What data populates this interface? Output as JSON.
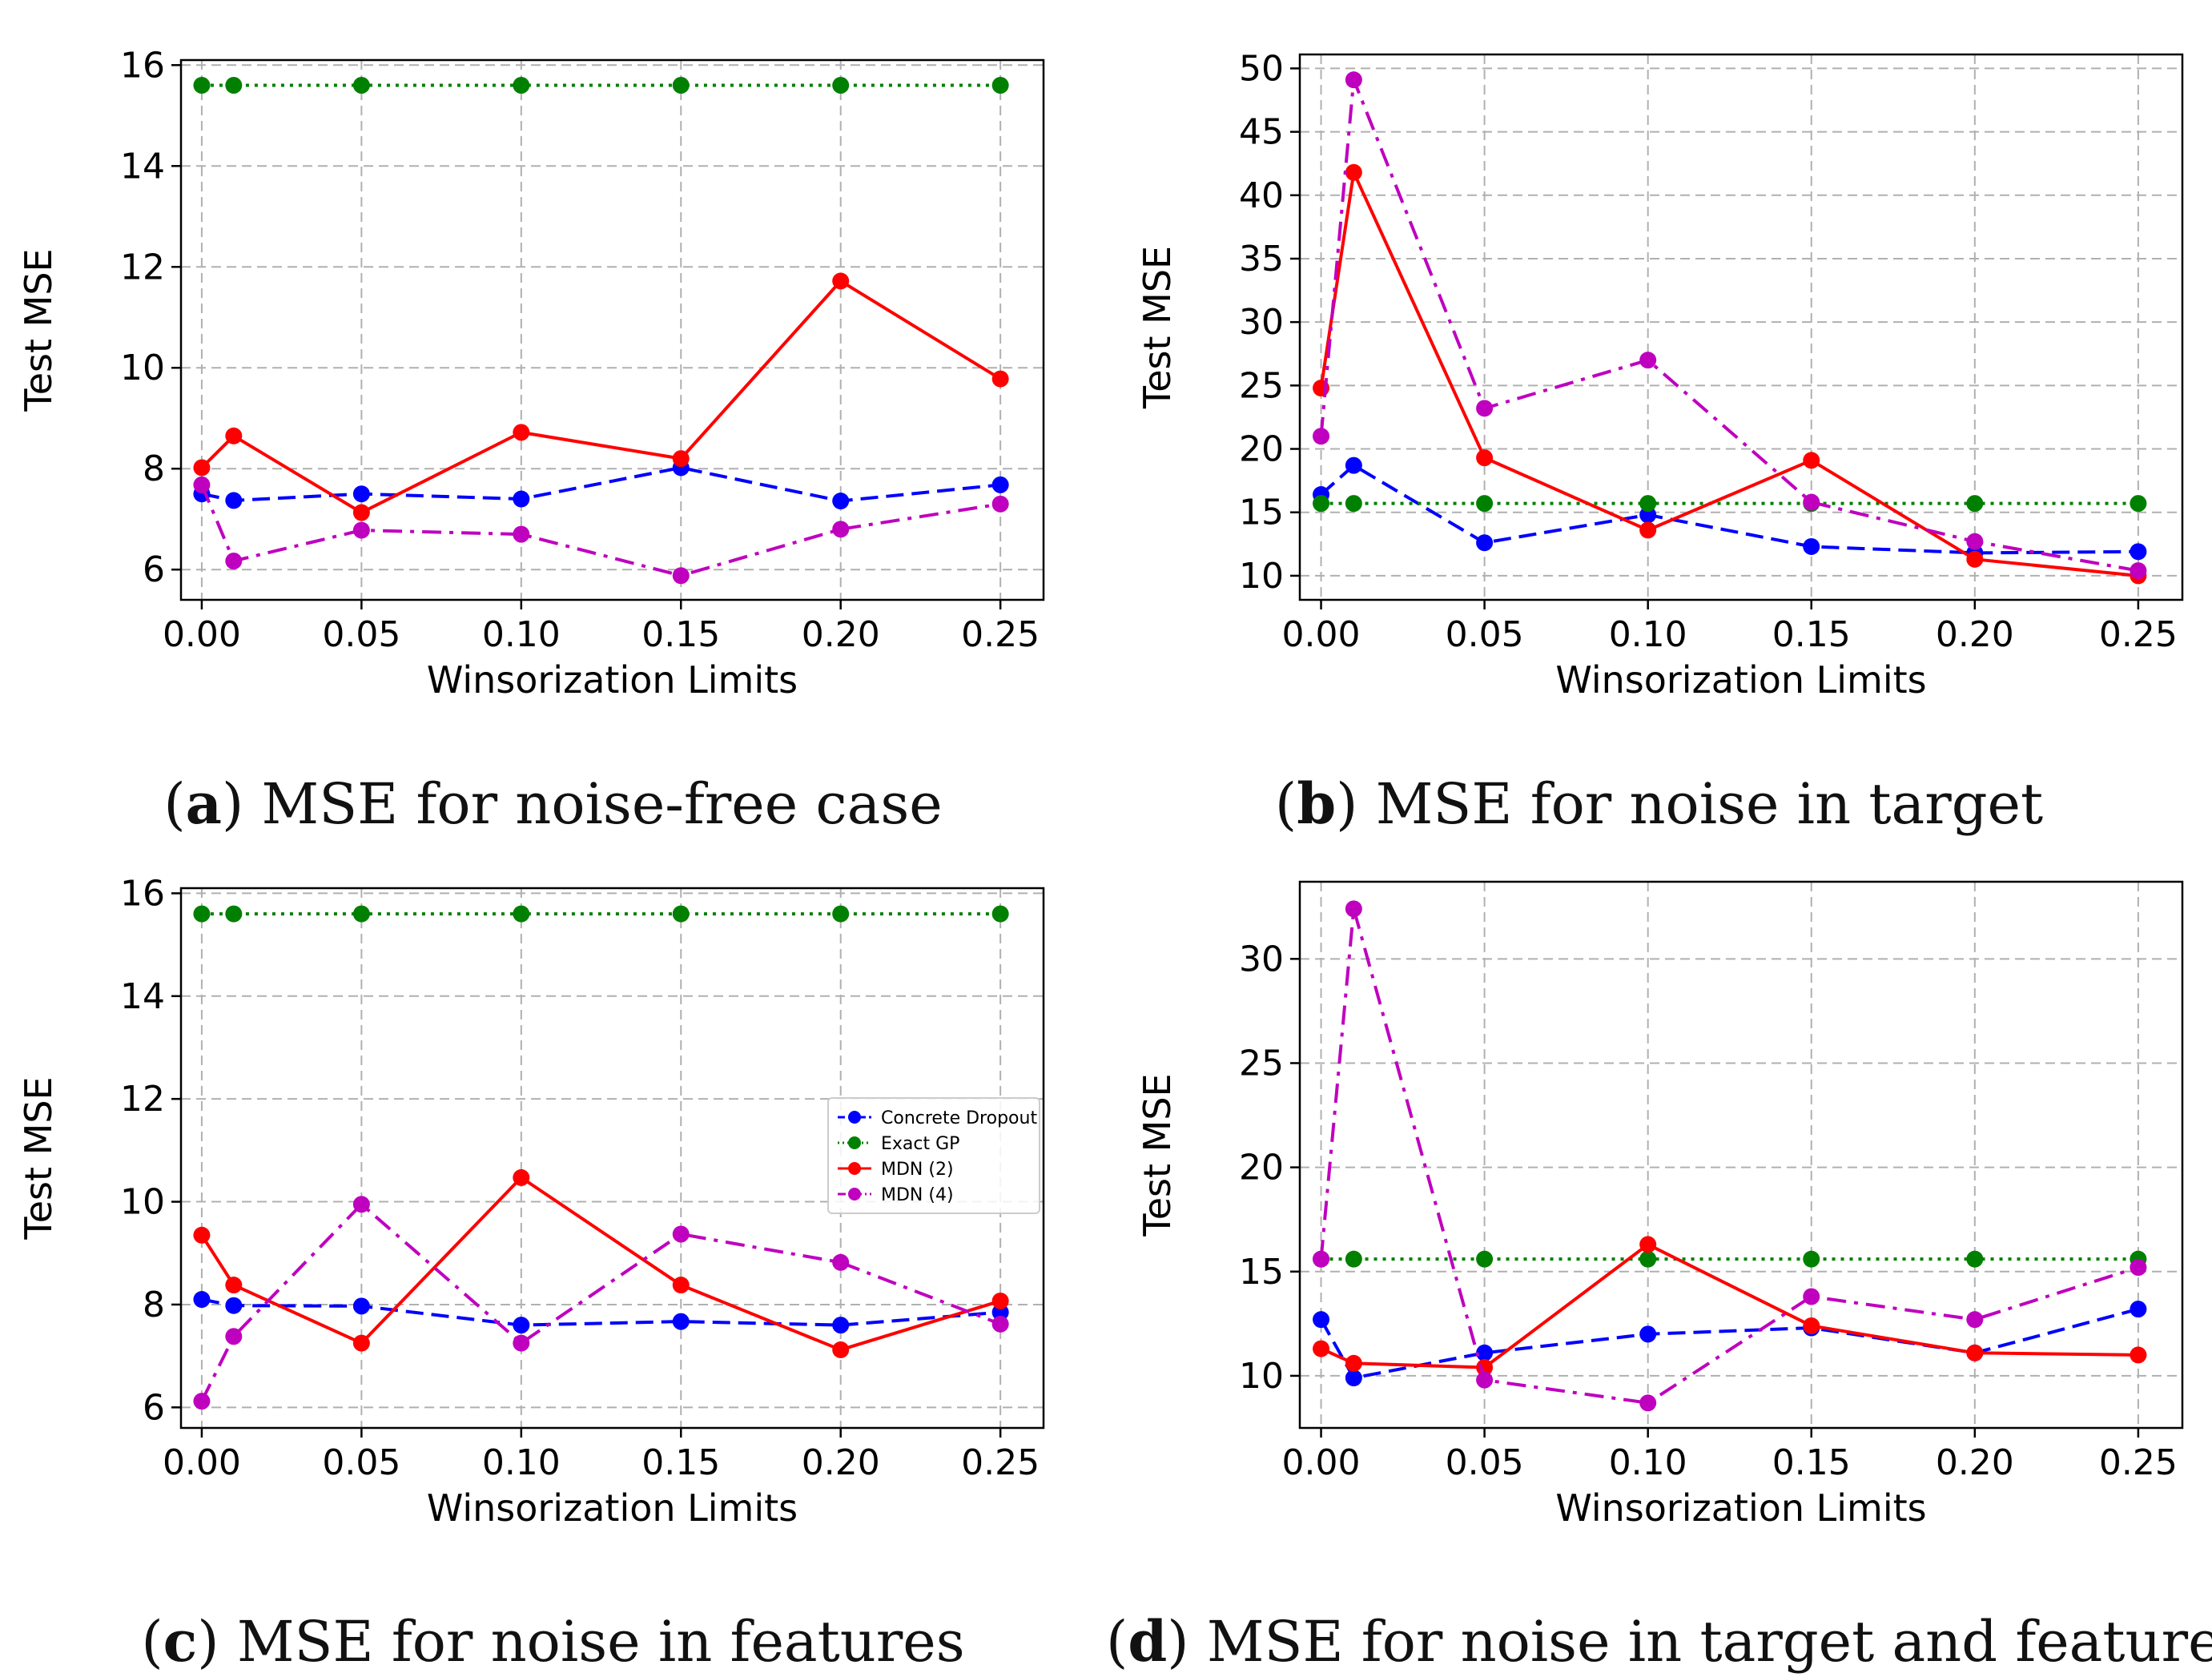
{
  "colors": {
    "concrete_dropout": "#0000ff",
    "exact_gp": "#008000",
    "mdn2": "#ff0000",
    "mdn4": "#bf00bf",
    "grid": "#b0b0b0"
  },
  "chart_data": [
    {
      "type": "line",
      "panel_label": "a",
      "caption": "MSE for noise-free case",
      "xlabel": "Winsorization Limits",
      "ylabel": "Test MSE",
      "x": [
        0.0,
        0.01,
        0.05,
        0.1,
        0.15,
        0.2,
        0.25
      ],
      "xticks": [
        "0.00",
        "0.05",
        "0.10",
        "0.15",
        "0.20",
        "0.25"
      ],
      "xtick_values": [
        0.0,
        0.05,
        0.1,
        0.15,
        0.2,
        0.25
      ],
      "xlim": [
        -0.0065,
        0.2635
      ],
      "ylim": [
        5.4,
        16.1
      ],
      "yticks": [
        "6",
        "8",
        "10",
        "12",
        "14",
        "16"
      ],
      "ytick_values": [
        6,
        8,
        10,
        12,
        14,
        16
      ],
      "grid": true,
      "legend": false,
      "series": [
        {
          "name": "Concrete Dropout",
          "style": "dashed",
          "values": [
            7.5,
            7.37,
            7.5,
            7.4,
            8.02,
            7.36,
            7.68
          ]
        },
        {
          "name": "Exact GP",
          "style": "dotted",
          "values": [
            15.6,
            15.6,
            15.6,
            15.6,
            15.6,
            15.6,
            15.6
          ]
        },
        {
          "name": "MDN (2)",
          "style": "solid",
          "values": [
            8.02,
            8.65,
            7.13,
            8.72,
            8.2,
            11.72,
            9.78
          ]
        },
        {
          "name": "MDN (4)",
          "style": "dashdot",
          "values": [
            7.68,
            6.17,
            6.78,
            6.7,
            5.88,
            6.8,
            7.3
          ]
        }
      ]
    },
    {
      "type": "line",
      "panel_label": "b",
      "caption": "MSE for noise in target",
      "xlabel": "Winsorization Limits",
      "ylabel": "Test MSE",
      "x": [
        0.0,
        0.01,
        0.05,
        0.1,
        0.15,
        0.2,
        0.25
      ],
      "xticks": [
        "0.00",
        "0.05",
        "0.10",
        "0.15",
        "0.20",
        "0.25"
      ],
      "xtick_values": [
        0.0,
        0.05,
        0.1,
        0.15,
        0.2,
        0.25
      ],
      "xlim": [
        -0.0065,
        0.2635
      ],
      "ylim": [
        8.1,
        51.1
      ],
      "yticks": [
        "10",
        "15",
        "20",
        "25",
        "30",
        "35",
        "40",
        "45",
        "50"
      ],
      "ytick_values": [
        10,
        15,
        20,
        25,
        30,
        35,
        40,
        45,
        50
      ],
      "grid": true,
      "legend": false,
      "series": [
        {
          "name": "Concrete Dropout",
          "style": "dashed",
          "values": [
            16.4,
            18.7,
            12.6,
            14.8,
            12.3,
            11.8,
            11.9
          ]
        },
        {
          "name": "Exact GP",
          "style": "dotted",
          "values": [
            15.7,
            15.7,
            15.7,
            15.7,
            15.7,
            15.7,
            15.7
          ]
        },
        {
          "name": "MDN (2)",
          "style": "solid",
          "values": [
            24.8,
            41.8,
            19.3,
            13.6,
            19.1,
            11.3,
            10.0
          ]
        },
        {
          "name": "MDN (4)",
          "style": "dashdot",
          "values": [
            21.0,
            49.1,
            23.2,
            27.0,
            15.8,
            12.7,
            10.4
          ]
        }
      ]
    },
    {
      "type": "line",
      "panel_label": "c",
      "caption": "MSE for noise in features",
      "xlabel": "Winsorization Limits",
      "ylabel": "Test MSE",
      "x": [
        0.0,
        0.01,
        0.05,
        0.1,
        0.15,
        0.2,
        0.25
      ],
      "xticks": [
        "0.00",
        "0.05",
        "0.10",
        "0.15",
        "0.20",
        "0.25"
      ],
      "xtick_values": [
        0.0,
        0.05,
        0.1,
        0.15,
        0.2,
        0.25
      ],
      "xlim": [
        -0.0065,
        0.2635
      ],
      "ylim": [
        5.6,
        16.1
      ],
      "yticks": [
        "6",
        "8",
        "10",
        "12",
        "14",
        "16"
      ],
      "ytick_values": [
        6,
        8,
        10,
        12,
        14,
        16
      ],
      "grid": true,
      "legend": true,
      "legend_location": "center-right",
      "series": [
        {
          "name": "Concrete Dropout",
          "style": "dashed",
          "values": [
            8.1,
            7.98,
            7.97,
            7.6,
            7.67,
            7.6,
            7.85
          ]
        },
        {
          "name": "Exact GP",
          "style": "dotted",
          "values": [
            15.6,
            15.6,
            15.6,
            15.6,
            15.6,
            15.6,
            15.6
          ]
        },
        {
          "name": "MDN (2)",
          "style": "solid",
          "values": [
            9.35,
            8.38,
            7.25,
            10.47,
            8.38,
            7.12,
            8.07
          ]
        },
        {
          "name": "MDN (4)",
          "style": "dashdot",
          "values": [
            6.12,
            7.38,
            9.95,
            7.25,
            9.37,
            8.82,
            7.62
          ]
        }
      ]
    },
    {
      "type": "line",
      "panel_label": "d",
      "caption": "MSE for noise in target and features",
      "xlabel": "Winsorization Limits",
      "ylabel": "Test MSE",
      "x": [
        0.0,
        0.01,
        0.05,
        0.1,
        0.15,
        0.2,
        0.25
      ],
      "xticks": [
        "0.00",
        "0.05",
        "0.10",
        "0.15",
        "0.20",
        "0.25"
      ],
      "xtick_values": [
        0.0,
        0.05,
        0.1,
        0.15,
        0.2,
        0.25
      ],
      "xlim": [
        -0.0065,
        0.2635
      ],
      "ylim": [
        7.5,
        33.7
      ],
      "yticks": [
        "10",
        "15",
        "20",
        "25",
        "30"
      ],
      "ytick_values": [
        10,
        15,
        20,
        25,
        30
      ],
      "grid": true,
      "legend": false,
      "series": [
        {
          "name": "Concrete Dropout",
          "style": "dashed",
          "values": [
            12.7,
            9.9,
            11.1,
            12.0,
            12.3,
            11.1,
            13.2
          ]
        },
        {
          "name": "Exact GP",
          "style": "dotted",
          "values": [
            15.6,
            15.6,
            15.6,
            15.6,
            15.6,
            15.6,
            15.6
          ]
        },
        {
          "name": "MDN (2)",
          "style": "solid",
          "values": [
            11.3,
            10.6,
            10.4,
            16.3,
            12.4,
            11.1,
            11.0
          ]
        },
        {
          "name": "MDN (4)",
          "style": "dashdot",
          "values": [
            15.6,
            32.4,
            9.8,
            8.7,
            13.8,
            12.7,
            15.2
          ]
        }
      ]
    }
  ]
}
